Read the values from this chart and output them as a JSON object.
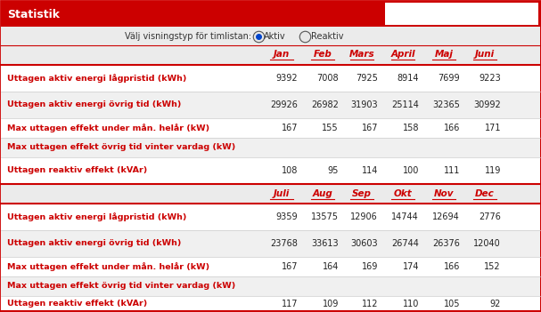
{
  "title": "Statistik",
  "radio_label": "Välj visningstyp för timlistan:",
  "radio_options": [
    "Aktiv",
    "Reaktiv"
  ],
  "header_color": "#cc0000",
  "header_text_color": "#ffffff",
  "bg_light": "#ebebeb",
  "bg_white": "#ffffff",
  "border_color": "#cc0000",
  "months_h1": [
    "Jan",
    "Feb",
    "Mars",
    "April",
    "Maj",
    "Juni"
  ],
  "months_h2": [
    "Juli",
    "Aug",
    "Sep",
    "Okt",
    "Nov",
    "Dec"
  ],
  "row_labels": [
    "Uttagen aktiv energi lågpristid (kWh)",
    "Uttagen aktiv energi övrig tid (kWh)",
    "Max uttagen effekt under mån. helår (kW)",
    "Max uttagen effekt övrig tid vinter vardag (kW)",
    "Uttagen reaktiv effekt (kVAr)"
  ],
  "data_h1": [
    [
      9392,
      7008,
      7925,
      8914,
      7699,
      9223
    ],
    [
      29926,
      26982,
      31903,
      25114,
      32365,
      30992
    ],
    [
      167,
      155,
      167,
      158,
      166,
      171
    ],
    [],
    [
      108,
      95,
      114,
      100,
      111,
      119
    ]
  ],
  "data_h2": [
    [
      9359,
      13575,
      12906,
      14744,
      12694,
      2776
    ],
    [
      23768,
      33613,
      30603,
      26744,
      26376,
      12040
    ],
    [
      167,
      164,
      169,
      174,
      166,
      152
    ],
    [],
    [
      117,
      109,
      112,
      110,
      105,
      92
    ]
  ],
  "col_starts": [
    300,
    346,
    390,
    436,
    482,
    528
  ],
  "row_heights_top": [
    278,
    248,
    218,
    196,
    174,
    144
  ],
  "row_heights_bot": [
    122,
    92,
    62,
    40,
    18,
    1
  ],
  "row_centers_top": [
    263,
    233,
    207,
    185,
    159
  ],
  "row_centers_bot": [
    107,
    77,
    51,
    29,
    9
  ],
  "row_bg_colors": [
    "#ffffff",
    "#f0f0f0",
    "#ffffff",
    "#f0f0f0",
    "#ffffff"
  ]
}
